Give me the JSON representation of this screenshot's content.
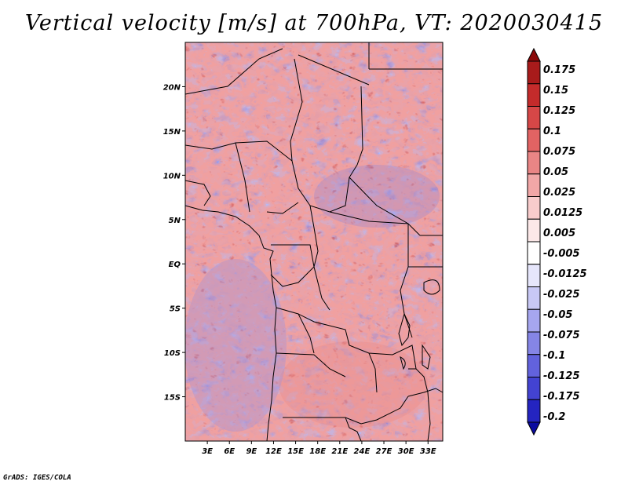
{
  "title": "Vertical velocity [m/s] at 700hPa, VT: 2020030415",
  "credit": "GrADS: IGES/COLA",
  "map": {
    "lat_range": [
      -20,
      25
    ],
    "lon_range": [
      0,
      35
    ],
    "lat_ticks": [
      {
        "value": 20,
        "label": "20N"
      },
      {
        "value": 15,
        "label": "15N"
      },
      {
        "value": 10,
        "label": "10N"
      },
      {
        "value": 5,
        "label": "5N"
      },
      {
        "value": 0,
        "label": "EQ"
      },
      {
        "value": -5,
        "label": "5S"
      },
      {
        "value": -10,
        "label": "10S"
      },
      {
        "value": -15,
        "label": "15S"
      }
    ],
    "lon_ticks": [
      {
        "value": 3,
        "label": "3E"
      },
      {
        "value": 6,
        "label": "6E"
      },
      {
        "value": 9,
        "label": "9E"
      },
      {
        "value": 12,
        "label": "12E"
      },
      {
        "value": 15,
        "label": "15E"
      },
      {
        "value": 18,
        "label": "18E"
      },
      {
        "value": 21,
        "label": "21E"
      },
      {
        "value": 24,
        "label": "24E"
      },
      {
        "value": 27,
        "label": "27E"
      },
      {
        "value": 30,
        "label": "30E"
      },
      {
        "value": 33,
        "label": "33E"
      }
    ]
  },
  "colorbar": {
    "labels": [
      "0.175",
      "0.15",
      "0.125",
      "0.1",
      "0.075",
      "0.05",
      "0.025",
      "0.0125",
      "0.005",
      "-0.005",
      "-0.0125",
      "-0.025",
      "-0.05",
      "-0.075",
      "-0.1",
      "-0.125",
      "-0.175",
      "-0.2"
    ],
    "colors": [
      "#8b0a0a",
      "#a81b1b",
      "#c42b2b",
      "#d64747",
      "#e26363",
      "#e98585",
      "#f1a7a7",
      "#f8cccc",
      "#fce8e8",
      "#ffffff",
      "#e6e6fb",
      "#c8c8f5",
      "#a6a6ef",
      "#8585e6",
      "#6262dd",
      "#4343d2",
      "#2424c0",
      "#0a0aa0"
    ]
  }
}
